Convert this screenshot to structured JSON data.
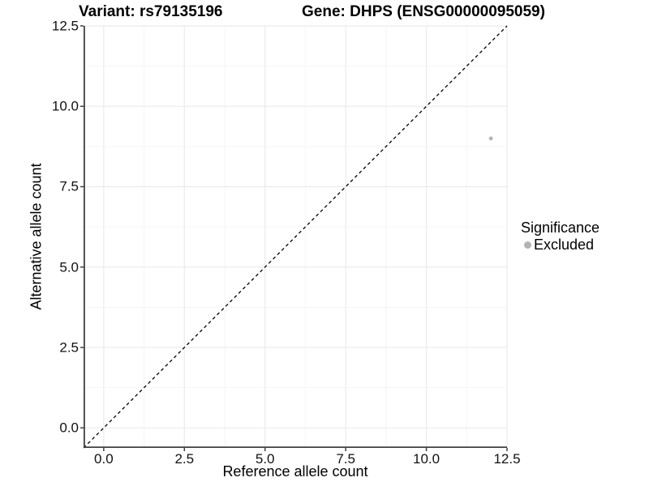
{
  "chart_data": {
    "type": "scatter",
    "title_left": "Variant: rs79135196",
    "title_right": "Gene: DHPS (ENSG00000095059)",
    "xlabel": "Reference allele count",
    "ylabel": "Alternative allele count",
    "xlim": [
      -0.625,
      12.5
    ],
    "ylim": [
      -0.625,
      12.5
    ],
    "xticks": {
      "values": [
        0,
        2.5,
        5,
        7.5,
        10,
        12.5
      ],
      "labels": [
        "0.0",
        "2.5",
        "5.0",
        "7.5",
        "10.0",
        "12.5"
      ]
    },
    "yticks": {
      "values": [
        0,
        2.5,
        5,
        7.5,
        10,
        12.5
      ],
      "labels": [
        "0.0",
        "2.5",
        "5.0",
        "7.5",
        "10.0",
        "12.5"
      ]
    },
    "grid": {
      "major_color": "#ebebeb",
      "minor_color": "#f5f5f5",
      "minor": "midpoints"
    },
    "series": [
      {
        "name": "Excluded",
        "color": "#b3b3b3",
        "points": [
          {
            "x": 12,
            "y": 9
          }
        ]
      }
    ],
    "reference_line": {
      "slope": 1,
      "intercept": 0,
      "linetype": "dashed",
      "color": "#000000"
    },
    "legend": {
      "title": "Significance",
      "position": "right",
      "entries": [
        {
          "label": "Excluded",
          "color": "#b3b3b3"
        }
      ]
    },
    "axis": {
      "line_color": "#404040",
      "tick_color": "#404040"
    }
  }
}
